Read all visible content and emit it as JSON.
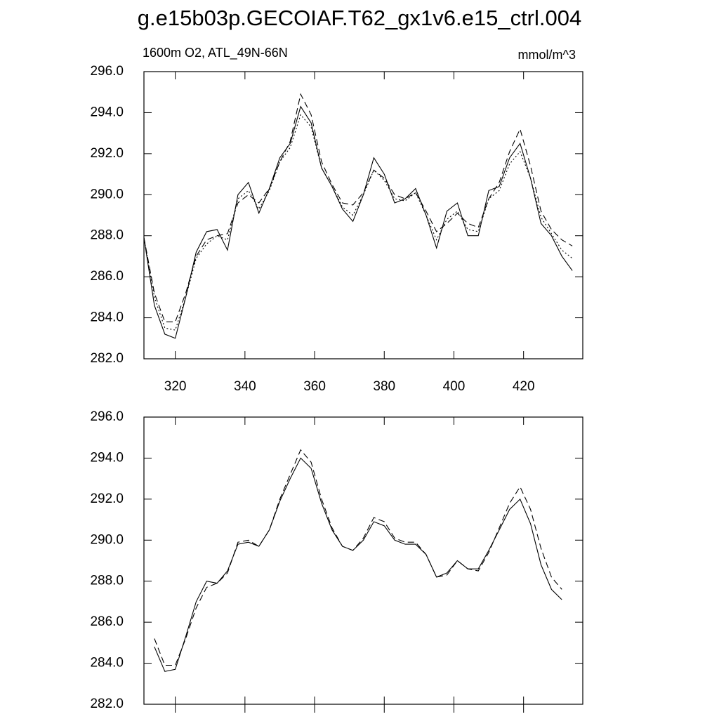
{
  "chart_data": [
    {
      "type": "line",
      "title": "g.e15b03p.GECOIAF.T62_gx1v6.e15_ctrl.004",
      "subtitle": "1600m O2, ATL_49N-66N",
      "units": "mmol/m^3",
      "xlim": [
        311,
        437
      ],
      "xticks": [
        320,
        340,
        360,
        380,
        400,
        420
      ],
      "xtick_labels": true,
      "ylim": [
        282,
        296
      ],
      "yticks": [
        {
          "value": 282,
          "label": "282.0"
        },
        {
          "value": 284,
          "label": "284.0"
        },
        {
          "value": 286,
          "label": "286.0"
        },
        {
          "value": 288,
          "label": "288.0"
        },
        {
          "value": 290,
          "label": "290.0"
        },
        {
          "value": 292,
          "label": "292.0"
        },
        {
          "value": 294,
          "label": "294.0"
        },
        {
          "value": 296,
          "label": "296.0"
        }
      ],
      "x": [
        311,
        314,
        317,
        320,
        323,
        326,
        329,
        332,
        335,
        338,
        341,
        344,
        347,
        350,
        353,
        356,
        359,
        362,
        365,
        368,
        371,
        374,
        377,
        380,
        383,
        386,
        389,
        392,
        395,
        398,
        401,
        404,
        407,
        410,
        413,
        416,
        419,
        422,
        425,
        428,
        431,
        434
      ],
      "series": [
        {
          "color": "#000000",
          "dash": "none",
          "values": [
            287.9,
            284.6,
            283.2,
            283.0,
            285.0,
            287.2,
            288.2,
            288.3,
            287.3,
            290.0,
            290.6,
            289.1,
            290.3,
            291.8,
            292.5,
            294.3,
            293.5,
            291.3,
            290.4,
            289.3,
            288.7,
            290.0,
            291.8,
            291.0,
            289.6,
            289.8,
            290.3,
            289.0,
            287.4,
            289.2,
            289.6,
            288.0,
            288.0,
            290.2,
            290.4,
            291.8,
            292.5,
            290.8,
            288.6,
            288.0,
            287.0,
            286.3
          ]
        },
        {
          "color": "#000000",
          "dash": "9 5",
          "values": [
            287.9,
            285.2,
            283.8,
            283.8,
            285.2,
            287.0,
            287.8,
            288.0,
            288.1,
            289.6,
            290.0,
            289.6,
            290.3,
            291.6,
            292.6,
            294.9,
            293.9,
            291.6,
            290.5,
            289.6,
            289.5,
            290.1,
            291.2,
            290.8,
            290.0,
            289.8,
            290.1,
            289.2,
            288.2,
            288.6,
            289.1,
            288.6,
            288.4,
            289.8,
            290.6,
            292.1,
            293.2,
            291.4,
            289.2,
            288.3,
            287.8,
            287.5
          ]
        },
        {
          "color": "#000000",
          "dash": "2 3",
          "values": [
            287.9,
            285.0,
            283.5,
            283.4,
            285.0,
            286.9,
            287.6,
            288.0,
            287.8,
            289.8,
            290.2,
            289.3,
            290.2,
            291.6,
            292.3,
            293.9,
            293.3,
            291.3,
            290.4,
            289.4,
            289.0,
            290.0,
            291.2,
            290.7,
            289.8,
            289.7,
            290.1,
            289.0,
            287.8,
            288.8,
            289.2,
            288.3,
            288.2,
            289.8,
            290.2,
            291.5,
            292.1,
            290.8,
            288.9,
            288.1,
            287.3,
            286.9
          ]
        }
      ]
    },
    {
      "type": "line",
      "xlim": [
        311,
        437
      ],
      "xticks": [
        320,
        340,
        360,
        380,
        400,
        420
      ],
      "xtick_labels": false,
      "ylim": [
        282,
        296
      ],
      "yticks": [
        {
          "value": 282,
          "label": "282.0"
        },
        {
          "value": 284,
          "label": "284.0"
        },
        {
          "value": 286,
          "label": "286.0"
        },
        {
          "value": 288,
          "label": "288.0"
        },
        {
          "value": 290,
          "label": "290.0"
        },
        {
          "value": 292,
          "label": "292.0"
        },
        {
          "value": 294,
          "label": "294.0"
        },
        {
          "value": 296,
          "label": "296.0"
        }
      ],
      "x": [
        314,
        317,
        320,
        323,
        326,
        329,
        332,
        335,
        338,
        341,
        344,
        347,
        350,
        353,
        356,
        359,
        362,
        365,
        368,
        371,
        374,
        377,
        380,
        383,
        386,
        389,
        392,
        395,
        398,
        401,
        404,
        407,
        410,
        413,
        416,
        419,
        422,
        425,
        428,
        431
      ],
      "series": [
        {
          "color": "#000000",
          "dash": "none",
          "values": [
            284.8,
            283.6,
            283.7,
            285.3,
            287.0,
            288.0,
            287.9,
            288.5,
            289.8,
            289.9,
            289.7,
            290.5,
            291.9,
            293.0,
            294.0,
            293.5,
            291.8,
            290.5,
            289.7,
            289.5,
            290.0,
            290.9,
            290.7,
            290.0,
            289.8,
            289.8,
            289.3,
            288.2,
            288.4,
            289.0,
            288.6,
            288.6,
            289.5,
            290.5,
            291.5,
            292.0,
            290.8,
            288.8,
            287.6,
            287.1
          ]
        },
        {
          "color": "#000000",
          "dash": "9 5",
          "values": [
            285.2,
            283.9,
            283.9,
            285.2,
            286.7,
            287.7,
            287.9,
            288.4,
            289.9,
            290.0,
            289.7,
            290.5,
            292.0,
            293.2,
            294.4,
            293.8,
            292.0,
            290.6,
            289.7,
            289.5,
            290.1,
            291.1,
            290.9,
            290.1,
            289.9,
            289.9,
            289.3,
            288.2,
            288.3,
            289.0,
            288.6,
            288.5,
            289.4,
            290.6,
            291.8,
            292.6,
            291.5,
            289.6,
            288.2,
            287.6
          ]
        }
      ]
    }
  ]
}
